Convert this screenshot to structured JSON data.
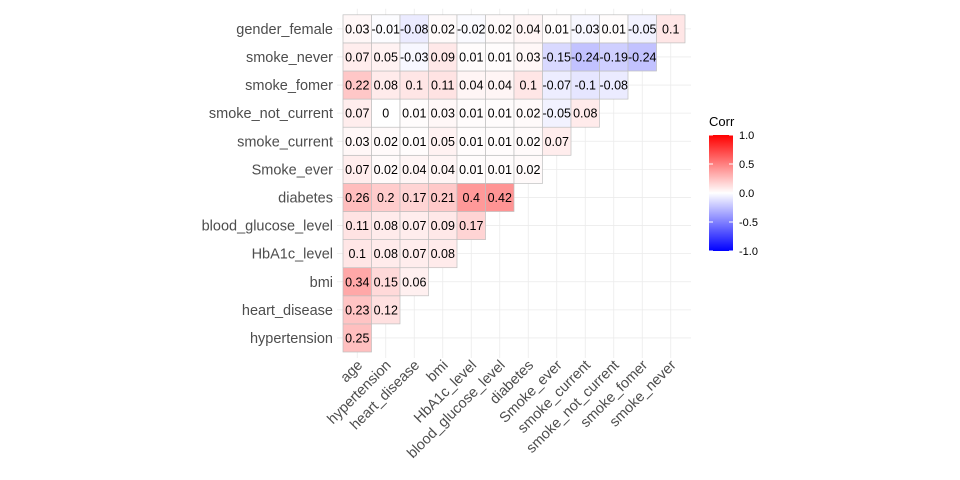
{
  "chart_data": {
    "type": "heatmap",
    "title": "",
    "xlabel": "",
    "ylabel": "",
    "grid": true,
    "legend": {
      "title": "Corr",
      "position": "right",
      "ticks": [
        "1.0",
        "0.5",
        "0.0",
        "-0.5",
        "-1.0"
      ],
      "tick_values": [
        1.0,
        0.5,
        0.0,
        -0.5,
        -1.0
      ],
      "low_color": "#0000ff",
      "mid_color": "#ffffff",
      "high_color": "#ff0000",
      "range": [
        -1,
        1
      ]
    },
    "x_categories": [
      "age",
      "hypertension",
      "heart_disease",
      "bmi",
      "HbA1c_level",
      "blood_glucose_level",
      "diabetes",
      "Smoke_ever",
      "smoke_current",
      "smoke_not_current",
      "smoke_fomer",
      "smoke_never"
    ],
    "y_categories": [
      "hypertension",
      "heart_disease",
      "bmi",
      "HbA1c_level",
      "blood_glucose_level",
      "diabetes",
      "Smoke_ever",
      "smoke_current",
      "smoke_not_current",
      "smoke_fomer",
      "smoke_never",
      "gender_female"
    ],
    "values": [
      [
        0.25
      ],
      [
        0.23,
        0.12
      ],
      [
        0.34,
        0.15,
        0.06
      ],
      [
        0.1,
        0.08,
        0.07,
        0.08
      ],
      [
        0.11,
        0.08,
        0.07,
        0.09,
        0.17
      ],
      [
        0.26,
        0.2,
        0.17,
        0.21,
        0.4,
        0.42
      ],
      [
        0.07,
        0.02,
        0.04,
        0.04,
        0.01,
        0.01,
        0.02
      ],
      [
        0.03,
        0.02,
        0.01,
        0.05,
        0.01,
        0.01,
        0.02,
        0.07
      ],
      [
        0.07,
        0,
        0.01,
        0.03,
        0.01,
        0.01,
        0.02,
        -0.05,
        0.08
      ],
      [
        0.22,
        0.08,
        0.1,
        0.11,
        0.04,
        0.04,
        0.1,
        -0.07,
        -0.1,
        -0.08
      ],
      [
        0.07,
        0.05,
        -0.03,
        0.09,
        0.01,
        0.01,
        0.03,
        -0.15,
        -0.24,
        -0.19,
        -0.24
      ],
      [
        0.03,
        -0.01,
        -0.08,
        0.02,
        -0.02,
        0.02,
        0.04,
        0.01,
        -0.03,
        0.01,
        -0.05,
        0.1
      ]
    ],
    "labels": [
      [
        "0.25"
      ],
      [
        "0.23",
        "0.12"
      ],
      [
        "0.34",
        "0.15",
        "0.06"
      ],
      [
        "0.1",
        "0.08",
        "0.07",
        "0.08"
      ],
      [
        "0.11",
        "0.08",
        "0.07",
        "0.09",
        "0.17"
      ],
      [
        "0.26",
        "0.2",
        "0.17",
        "0.21",
        "0.4",
        "0.42"
      ],
      [
        "0.07",
        "0.02",
        "0.04",
        "0.04",
        "0.01",
        "0.01",
        "0.02"
      ],
      [
        "0.03",
        "0.02",
        "0.01",
        "0.05",
        "0.01",
        "0.01",
        "0.02",
        "0.07"
      ],
      [
        "0.07",
        "0",
        "0.01",
        "0.03",
        "0.01",
        "0.01",
        "0.02",
        "-0.05",
        "0.08"
      ],
      [
        "0.22",
        "0.08",
        "0.1",
        "0.11",
        "0.04",
        "0.04",
        "0.1",
        "-0.07",
        "-0.1",
        "-0.08"
      ],
      [
        "0.07",
        "0.05",
        "-0.03",
        "0.09",
        "0.01",
        "0.01",
        "0.03",
        "-0.15",
        "-0.24",
        "-0.19",
        "-0.24"
      ],
      [
        "0.03",
        "-0.01",
        "-0.08",
        "0.02",
        "-0.02",
        "0.02",
        "0.04",
        "0.01",
        "-0.03",
        "0.01",
        "-0.05",
        "0.1"
      ]
    ]
  }
}
